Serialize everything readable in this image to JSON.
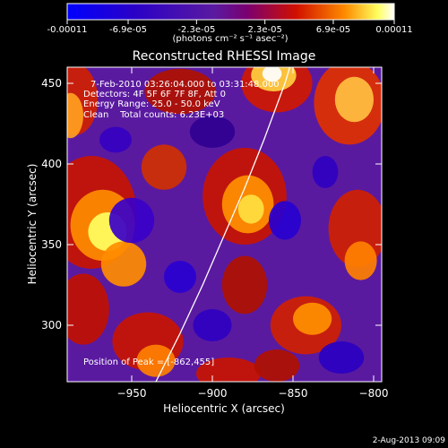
{
  "colorbar": {
    "ticks": [
      "-0.00011",
      "-6.9e-05",
      "-2.3e-05",
      "2.3e-05",
      "6.9e-05",
      "0.00011"
    ],
    "tick_values": [
      -0.00011,
      -6.9e-05,
      -2.3e-05,
      2.3e-05,
      6.9e-05,
      0.00011
    ],
    "range": [
      -0.00011,
      0.00011
    ],
    "unit_label": "(photons cm⁻² s⁻¹ asec⁻²)"
  },
  "chart_data": {
    "type": "heatmap",
    "title": "Reconstructed RHESSI Image",
    "xlabel": "Heliocentric X (arcsec)",
    "ylabel": "Heliocentric Y (arcsec)",
    "xlim": [
      -990,
      -795
    ],
    "ylim": [
      265,
      460
    ],
    "x_ticks": [
      -950,
      -900,
      -850,
      -800
    ],
    "y_ticks": [
      300,
      350,
      400,
      450
    ],
    "x_tick_labels": [
      "−950",
      "−900",
      "−850",
      "−800"
    ],
    "y_tick_labels": [
      "300",
      "350",
      "400",
      "450"
    ],
    "colormap": "rhessi-blue-purple-red-yellow-white",
    "limb_curve": [
      [
        -935,
        265
      ],
      [
        -920,
        295
      ],
      [
        -906,
        325
      ],
      [
        -893,
        355
      ],
      [
        -880,
        385
      ],
      [
        -868,
        415
      ],
      [
        -855,
        450
      ],
      [
        -852,
        460
      ]
    ],
    "annotations": {
      "time": "7-Feb-2010 03:26:04.000 to 03:31:48.000",
      "detectors": "Detectors: 4F 5F 6F 7F 8F, Att 0",
      "energy": "Energy Range: 25.0 - 50.0 keV",
      "clean": "Clean    Total counts: 6.23E+03",
      "peak": "Position of Peak = [-862,455]"
    },
    "peak": [
      -862,
      455
    ]
  },
  "footer": {
    "date": "2-Aug-2013 09:09"
  }
}
